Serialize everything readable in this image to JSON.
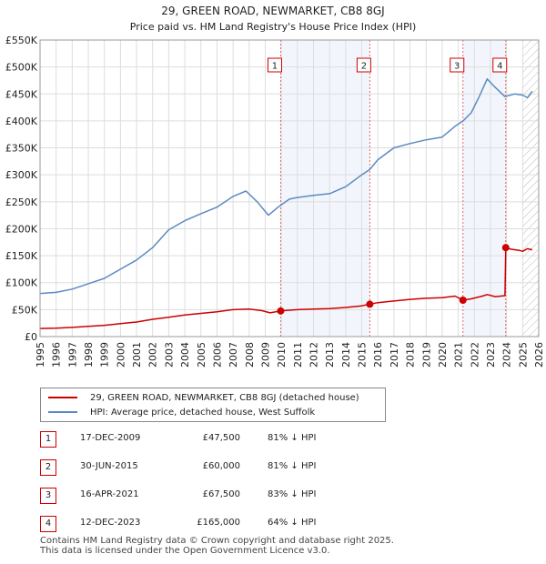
{
  "chart_data": {
    "type": "line",
    "title": "29, GREEN ROAD, NEWMARKET, CB8 8GJ",
    "subtitle": "Price paid vs. HM Land Registry's House Price Index (HPI)",
    "xlim": [
      1995,
      2026
    ],
    "ylim": [
      0,
      550000
    ],
    "y_ticks": [
      0,
      50000,
      100000,
      150000,
      200000,
      250000,
      300000,
      350000,
      400000,
      450000,
      500000,
      550000
    ],
    "y_tick_labels": [
      "£0",
      "£50K",
      "£100K",
      "£150K",
      "£200K",
      "£250K",
      "£300K",
      "£350K",
      "£400K",
      "£450K",
      "£500K",
      "£550K"
    ],
    "x_ticks": [
      "1995",
      "1996",
      "1997",
      "1998",
      "1999",
      "2000",
      "2001",
      "2002",
      "2003",
      "2004",
      "2005",
      "2006",
      "2007",
      "2008",
      "2009",
      "2010",
      "2011",
      "2012",
      "2013",
      "2014",
      "2015",
      "2016",
      "2017",
      "2018",
      "2019",
      "2020",
      "2021",
      "2022",
      "2023",
      "2024",
      "2025",
      "2026"
    ],
    "grid": true,
    "series": [
      {
        "name": "29, GREEN ROAD, NEWMARKET, CB8 8GJ (detached house)",
        "color": "#cc0000",
        "points": [
          [
            1995.0,
            15000
          ],
          [
            1996.0,
            15500
          ],
          [
            1997.0,
            17000
          ],
          [
            1998.0,
            19000
          ],
          [
            1999.0,
            21000
          ],
          [
            2000.0,
            24000
          ],
          [
            2001.0,
            27000
          ],
          [
            2002.0,
            32000
          ],
          [
            2003.0,
            36000
          ],
          [
            2004.0,
            40000
          ],
          [
            2005.0,
            43000
          ],
          [
            2006.0,
            46000
          ],
          [
            2007.0,
            50000
          ],
          [
            2008.0,
            51000
          ],
          [
            2008.8,
            48000
          ],
          [
            2009.3,
            44000
          ],
          [
            2009.96,
            47500
          ],
          [
            2010.5,
            49000
          ],
          [
            2011.0,
            50000
          ],
          [
            2012.0,
            51000
          ],
          [
            2013.0,
            52000
          ],
          [
            2014.0,
            54000
          ],
          [
            2015.0,
            57000
          ],
          [
            2015.5,
            60000
          ],
          [
            2016.0,
            63000
          ],
          [
            2017.0,
            66000
          ],
          [
            2018.0,
            69000
          ],
          [
            2019.0,
            71000
          ],
          [
            2020.0,
            72000
          ],
          [
            2020.8,
            75000
          ],
          [
            2021.29,
            67500
          ],
          [
            2021.8,
            70000
          ],
          [
            2022.5,
            75000
          ],
          [
            2022.8,
            78000
          ],
          [
            2023.3,
            74000
          ],
          [
            2023.9,
            76000
          ],
          [
            2023.95,
            165000
          ],
          [
            2024.3,
            162000
          ],
          [
            2024.8,
            160000
          ],
          [
            2025.0,
            158000
          ],
          [
            2025.3,
            163000
          ],
          [
            2025.6,
            161000
          ]
        ]
      },
      {
        "name": "HPI: Average price, detached house, West Suffolk",
        "color": "#5b8ac0",
        "points": [
          [
            1995.0,
            80000
          ],
          [
            1996.0,
            82000
          ],
          [
            1997.0,
            88000
          ],
          [
            1998.0,
            98000
          ],
          [
            1999.0,
            108000
          ],
          [
            2000.0,
            125000
          ],
          [
            2001.0,
            142000
          ],
          [
            2002.0,
            165000
          ],
          [
            2003.0,
            198000
          ],
          [
            2004.0,
            215000
          ],
          [
            2005.0,
            228000
          ],
          [
            2006.0,
            240000
          ],
          [
            2007.0,
            260000
          ],
          [
            2007.8,
            270000
          ],
          [
            2008.5,
            250000
          ],
          [
            2009.2,
            225000
          ],
          [
            2009.8,
            240000
          ],
          [
            2010.5,
            255000
          ],
          [
            2011.0,
            258000
          ],
          [
            2012.0,
            262000
          ],
          [
            2013.0,
            265000
          ],
          [
            2014.0,
            278000
          ],
          [
            2015.0,
            300000
          ],
          [
            2015.5,
            310000
          ],
          [
            2016.0,
            328000
          ],
          [
            2017.0,
            350000
          ],
          [
            2018.0,
            358000
          ],
          [
            2019.0,
            365000
          ],
          [
            2020.0,
            370000
          ],
          [
            2020.8,
            390000
          ],
          [
            2021.3,
            400000
          ],
          [
            2021.8,
            415000
          ],
          [
            2022.3,
            445000
          ],
          [
            2022.8,
            478000
          ],
          [
            2023.2,
            465000
          ],
          [
            2023.9,
            445000
          ],
          [
            2024.5,
            450000
          ],
          [
            2025.0,
            448000
          ],
          [
            2025.3,
            443000
          ],
          [
            2025.6,
            455000
          ]
        ]
      }
    ],
    "markers": [
      {
        "id": "1",
        "x": 2009.96,
        "y": 47500
      },
      {
        "id": "2",
        "x": 2015.5,
        "y": 60000
      },
      {
        "id": "3",
        "x": 2021.29,
        "y": 67500
      },
      {
        "id": "4",
        "x": 2023.95,
        "y": 165000
      }
    ],
    "future_shade_from": 2025.0
  },
  "legend": {
    "items": [
      {
        "label": "29, GREEN ROAD, NEWMARKET, CB8 8GJ (detached house)",
        "color": "#cc0000"
      },
      {
        "label": "HPI: Average price, detached house, West Suffolk",
        "color": "#5b8ac0"
      }
    ]
  },
  "transactions": [
    {
      "num": "1",
      "date": "17-DEC-2009",
      "price": "£47,500",
      "hpi": "81% ↓ HPI"
    },
    {
      "num": "2",
      "date": "30-JUN-2015",
      "price": "£60,000",
      "hpi": "81% ↓ HPI"
    },
    {
      "num": "3",
      "date": "16-APR-2021",
      "price": "£67,500",
      "hpi": "83% ↓ HPI"
    },
    {
      "num": "4",
      "date": "12-DEC-2023",
      "price": "£165,000",
      "hpi": "64% ↓ HPI"
    }
  ],
  "footer": {
    "line1": "Contains HM Land Registry data © Crown copyright and database right 2025.",
    "line2": "This data is licensed under the Open Government Licence v3.0."
  }
}
